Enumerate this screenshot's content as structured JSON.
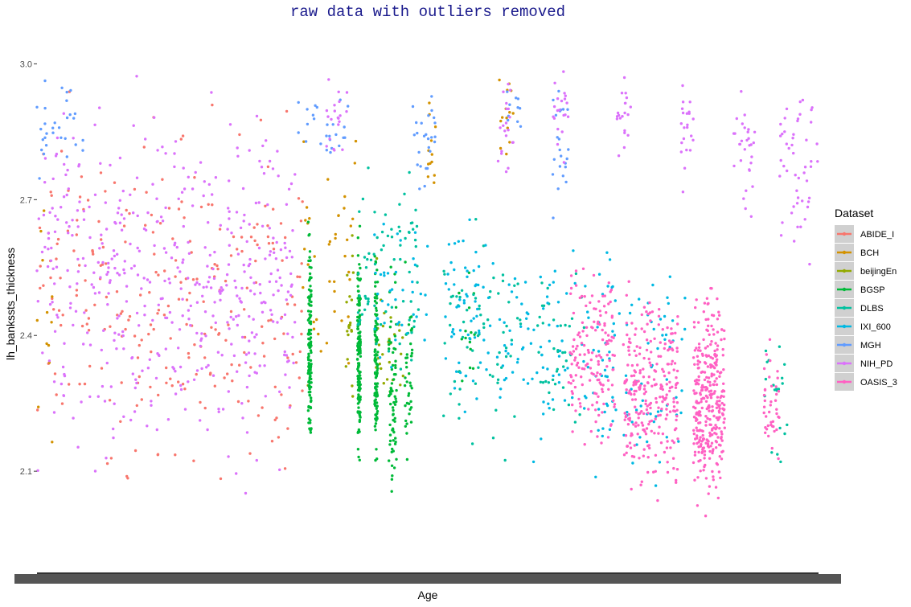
{
  "chart_data": {
    "type": "scatter",
    "title": "raw data with outliers removed",
    "xlabel": "Age",
    "ylabel": "lh_bankssts_thickness",
    "ylim": [
      1.88,
      3.07
    ],
    "yticks": [
      2.1,
      2.4,
      2.7,
      3.0
    ],
    "ytick_labels": [
      "2.1",
      "2.4",
      "2.7",
      "3.0"
    ],
    "xticks": "dense overlapping categorical tick labels (unreadable)",
    "grid": false,
    "legend": {
      "title": "Dataset",
      "placement": "right"
    },
    "series": [
      {
        "name": "ABIDE_I",
        "color": "#F8766D",
        "clusters": [
          {
            "x": [
              0.0,
              0.34
            ],
            "y": [
              1.95,
              3.02
            ],
            "n": 260
          }
        ]
      },
      {
        "name": "BCH",
        "color": "#D39200",
        "clusters": [
          {
            "x": [
              0.0,
              0.02
            ],
            "y": [
              2.0,
              2.95
            ],
            "n": 12
          },
          {
            "x": [
              0.34,
              0.41
            ],
            "y": [
              2.2,
              2.9
            ],
            "n": 40
          },
          {
            "x": [
              0.5,
              0.51
            ],
            "y": [
              2.6,
              2.95
            ],
            "n": 12
          },
          {
            "x": [
              0.59,
              0.61
            ],
            "y": [
              2.7,
              3.02
            ],
            "n": 14
          }
        ]
      },
      {
        "name": "beijingEn",
        "color": "#93AA00",
        "clusters": [
          {
            "x": [
              0.395,
              0.405
            ],
            "y": [
              2.2,
              2.7
            ],
            "n": 20
          },
          {
            "x": [
              0.43,
              0.47
            ],
            "y": [
              2.2,
              2.6
            ],
            "n": 30
          }
        ]
      },
      {
        "name": "BGSP",
        "color": "#00BA38",
        "clusters": [
          {
            "x": [
              0.347,
              0.351
            ],
            "y": [
              2.05,
              2.72
            ],
            "n": 130
          },
          {
            "x": [
              0.41,
              0.414
            ],
            "y": [
              2.07,
              2.67
            ],
            "n": 140
          },
          {
            "x": [
              0.432,
              0.436
            ],
            "y": [
              2.05,
              2.65
            ],
            "n": 110
          },
          {
            "x": [
              0.45,
              0.46
            ],
            "y": [
              1.99,
              2.62
            ],
            "n": 70
          },
          {
            "x": [
              0.47,
              0.48
            ],
            "y": [
              2.05,
              2.6
            ],
            "n": 40
          },
          {
            "x": [
              0.54,
              0.56
            ],
            "y": [
              2.2,
              2.6
            ],
            "n": 15
          }
        ]
      },
      {
        "name": "DLBS",
        "color": "#00C19F",
        "clusters": [
          {
            "x": [
              0.41,
              0.49
            ],
            "y": [
              2.2,
              2.85
            ],
            "n": 70
          },
          {
            "x": [
              0.52,
              0.62
            ],
            "y": [
              2.1,
              2.7
            ],
            "n": 70
          },
          {
            "x": [
              0.64,
              0.7
            ],
            "y": [
              2.1,
              2.65
            ],
            "n": 40
          },
          {
            "x": [
              0.93,
              0.96
            ],
            "y": [
              2.0,
              2.6
            ],
            "n": 20
          }
        ]
      },
      {
        "name": "IXI_600",
        "color": "#00B9E3",
        "clusters": [
          {
            "x": [
              0.43,
              0.5
            ],
            "y": [
              2.2,
              2.7
            ],
            "n": 40
          },
          {
            "x": [
              0.52,
              0.6
            ],
            "y": [
              2.1,
              2.75
            ],
            "n": 70
          },
          {
            "x": [
              0.6,
              0.74
            ],
            "y": [
              2.05,
              2.7
            ],
            "n": 90
          },
          {
            "x": [
              0.7,
              0.83
            ],
            "y": [
              2.0,
              2.65
            ],
            "n": 80
          }
        ]
      },
      {
        "name": "MGH",
        "color": "#619CFF",
        "clusters": [
          {
            "x": [
              0.0,
              0.06
            ],
            "y": [
              2.7,
              3.02
            ],
            "n": 30
          },
          {
            "x": [
              0.33,
              0.4
            ],
            "y": [
              2.75,
              2.98
            ],
            "n": 25
          },
          {
            "x": [
              0.48,
              0.51
            ],
            "y": [
              2.7,
              2.98
            ],
            "n": 25
          },
          {
            "x": [
              0.6,
              0.62
            ],
            "y": [
              2.8,
              3.0
            ],
            "n": 10
          },
          {
            "x": [
              0.66,
              0.68
            ],
            "y": [
              2.6,
              3.03
            ],
            "n": 22
          }
        ]
      },
      {
        "name": "NIH_PD",
        "color": "#DB72FB",
        "clusters": [
          {
            "x": [
              0.0,
              0.33
            ],
            "y": [
              2.0,
              3.02
            ],
            "n": 470
          },
          {
            "x": [
              0.37,
              0.4
            ],
            "y": [
              2.75,
              3.0
            ],
            "n": 20
          },
          {
            "x": [
              0.59,
              0.61
            ],
            "y": [
              2.7,
              3.02
            ],
            "n": 20
          },
          {
            "x": [
              0.66,
              0.68
            ],
            "y": [
              2.75,
              3.03
            ],
            "n": 20
          },
          {
            "x": [
              0.74,
              0.76
            ],
            "y": [
              2.75,
              3.0
            ],
            "n": 20
          },
          {
            "x": [
              0.82,
              0.84
            ],
            "y": [
              2.7,
              3.0
            ],
            "n": 22
          },
          {
            "x": [
              0.89,
              0.92
            ],
            "y": [
              2.6,
              3.02
            ],
            "n": 30
          },
          {
            "x": [
              0.95,
              1.0
            ],
            "y": [
              2.5,
              3.02
            ],
            "n": 50
          }
        ]
      },
      {
        "name": "OASIS_3",
        "color": "#FF61C3",
        "clusters": [
          {
            "x": [
              0.68,
              0.74
            ],
            "y": [
              2.1,
              2.62
            ],
            "n": 150
          },
          {
            "x": [
              0.75,
              0.82
            ],
            "y": [
              2.0,
              2.55
            ],
            "n": 260
          },
          {
            "x": [
              0.84,
              0.88
            ],
            "y": [
              1.93,
              2.58
            ],
            "n": 320
          },
          {
            "x": [
              0.93,
              0.95
            ],
            "y": [
              2.05,
              2.45
            ],
            "n": 40
          }
        ]
      }
    ]
  }
}
